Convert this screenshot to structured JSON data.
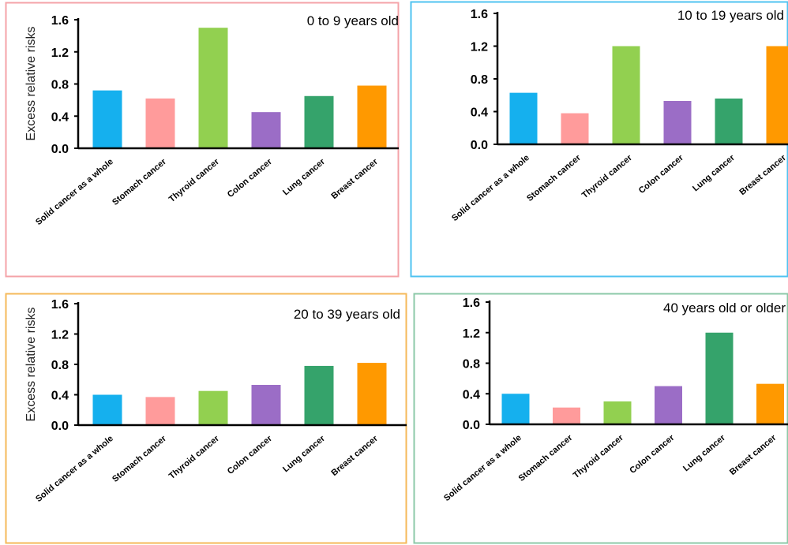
{
  "chart_data": [
    {
      "type": "bar",
      "title": "0 to 9 years old",
      "ylabel": "Excess relative risks",
      "xlabel": "",
      "categories": [
        "Solid cancer as a whole",
        "Stomach cancer",
        "Thyroid cancer",
        "Colon cancer",
        "Lung cancer",
        "Breast cancer"
      ],
      "values": [
        0.72,
        0.62,
        1.5,
        0.45,
        0.65,
        0.78
      ],
      "ylim": [
        0,
        1.6
      ],
      "yticks": [
        "0.0",
        "0.4",
        "0.8",
        "1.2",
        "1.6"
      ],
      "bar_colors": [
        "#15b0ee",
        "#ff9b9b",
        "#92d050",
        "#9b6dc6",
        "#35a36b",
        "#ff9900"
      ],
      "frame_color": "#f4a3a8"
    },
    {
      "type": "bar",
      "title": "10 to 19 years old",
      "ylabel": "",
      "xlabel": "",
      "categories": [
        "Solid cancer as a whole",
        "Stomach cancer",
        "Thyroid cancer",
        "Colon cancer",
        "Lung cancer",
        "Breast cancer"
      ],
      "values": [
        0.63,
        0.38,
        1.2,
        0.53,
        0.56,
        1.2
      ],
      "ylim": [
        0,
        1.6
      ],
      "yticks": [
        "0.0",
        "0.4",
        "0.8",
        "1.2",
        "1.6"
      ],
      "bar_colors": [
        "#15b0ee",
        "#ff9b9b",
        "#92d050",
        "#9b6dc6",
        "#35a36b",
        "#ff9900"
      ],
      "frame_color": "#4fc3f0"
    },
    {
      "type": "bar",
      "title": "20 to 39 years old",
      "ylabel": "Excess relative risks",
      "xlabel": "",
      "categories": [
        "Solid cancer as a whole",
        "Stomach cancer",
        "Thyroid cancer",
        "Colon cancer",
        "Lung cancer",
        "Breast cancer"
      ],
      "values": [
        0.4,
        0.37,
        0.45,
        0.53,
        0.78,
        0.82
      ],
      "ylim": [
        0,
        1.6
      ],
      "yticks": [
        "0.0",
        "0.4",
        "0.8",
        "1.2",
        "1.6"
      ],
      "bar_colors": [
        "#15b0ee",
        "#ff9b9b",
        "#92d050",
        "#9b6dc6",
        "#35a36b",
        "#ff9900"
      ],
      "frame_color": "#f5b95a"
    },
    {
      "type": "bar",
      "title": "40 years old or older",
      "ylabel": "",
      "xlabel": "",
      "categories": [
        "Solid cancer as a whole",
        "Stomach cancer",
        "Thyroid cancer",
        "Colon cancer",
        "Lung cancer",
        "Breast cancer"
      ],
      "values": [
        0.4,
        0.22,
        0.3,
        0.5,
        1.2,
        0.53
      ],
      "ylim": [
        0,
        1.6
      ],
      "yticks": [
        "0.0",
        "0.4",
        "0.8",
        "1.2",
        "1.6"
      ],
      "bar_colors": [
        "#15b0ee",
        "#ff9b9b",
        "#92d050",
        "#9b6dc6",
        "#35a36b",
        "#ff9900"
      ],
      "frame_color": "#8cc9a8"
    }
  ]
}
